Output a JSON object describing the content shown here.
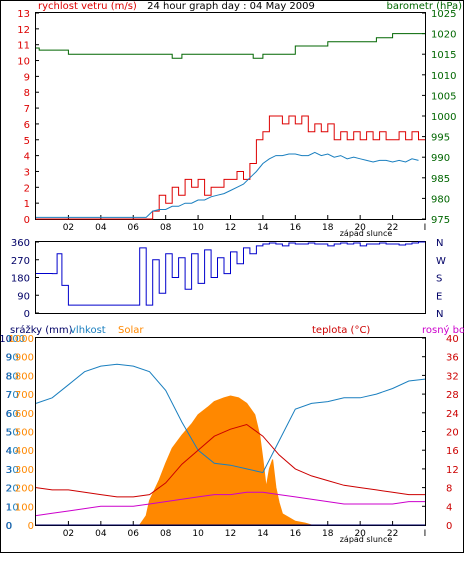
{
  "title": "24 hour graph day : 04 May 2009",
  "colors": {
    "wind": "#dd0000",
    "wind_avg": "#1a7fbf",
    "baro": "#006600",
    "dir": "#0000cc",
    "humidity": "#1a7fbf",
    "temp": "#cc0000",
    "dew": "#cc00cc",
    "solar": "#ff8800",
    "frame": "#000000",
    "grid": "#dddddd"
  },
  "chart_data": [
    {
      "type": "line",
      "title": "24 hour graph day : 04 May 2009",
      "left_axis_label": "rychlost vetru (m/s)",
      "right_axis_label": "barometr (hPa)",
      "xlabel": "západ slunce",
      "x_ticks": [
        "02",
        "04",
        "06",
        "08",
        "10",
        "12",
        "14",
        "16",
        "18",
        "20",
        "22"
      ],
      "left_ylim": [
        0,
        13
      ],
      "left_ticks": [
        0,
        1,
        2,
        3,
        4,
        5,
        6,
        7,
        8,
        9,
        10,
        11,
        12,
        13
      ],
      "right_ylim": [
        975,
        1025
      ],
      "right_ticks": [
        975,
        980,
        985,
        990,
        995,
        1000,
        1005,
        1010,
        1015,
        1020,
        1025
      ],
      "series": [
        {
          "axis": "left",
          "x": [
            0,
            0.4,
            0.8,
            1.2,
            1.6,
            2.0,
            2.4,
            2.8,
            3.2,
            3.6,
            4.0,
            4.4,
            4.8,
            5.2,
            5.6,
            6.0,
            6.4,
            6.8,
            7.2,
            7.6,
            8.0,
            8.4,
            8.8,
            9.2,
            9.6,
            10.0,
            10.4,
            10.8,
            11.2,
            11.6,
            12.0,
            12.4,
            12.8,
            13.2,
            13.6,
            14.0,
            14.4,
            14.8,
            15.2,
            15.6,
            16.0,
            16.4,
            16.8,
            17.2,
            17.6,
            18.0,
            18.4,
            18.8,
            19.2,
            19.6,
            20.0,
            20.4,
            20.8,
            21.2,
            21.6,
            22.0,
            22.4,
            22.8,
            23.2,
            23.6
          ],
          "y": [
            0,
            0,
            0,
            0,
            0,
            0,
            0,
            0,
            0,
            0,
            0,
            0,
            0,
            0,
            0,
            0,
            0,
            0,
            0.5,
            1.5,
            1.0,
            2.0,
            1.5,
            2.5,
            2.0,
            2.5,
            1.5,
            2.0,
            2.0,
            2.5,
            2.5,
            3.0,
            2.5,
            3.5,
            5.0,
            5.5,
            6.5,
            6.5,
            6.0,
            6.5,
            6.0,
            6.5,
            5.5,
            6.0,
            5.5,
            6.0,
            5.0,
            5.5,
            5.0,
            5.5,
            5.0,
            5.5,
            5.0,
            5.5,
            5.0,
            5.0,
            5.5,
            5.0,
            5.5,
            5.0
          ]
        },
        {
          "axis": "left",
          "x": [
            0,
            0.4,
            0.8,
            1.2,
            1.6,
            2.0,
            2.4,
            2.8,
            3.2,
            3.6,
            4.0,
            4.4,
            4.8,
            5.2,
            5.6,
            6.0,
            6.4,
            6.8,
            7.2,
            7.6,
            8.0,
            8.4,
            8.8,
            9.2,
            9.6,
            10.0,
            10.4,
            10.8,
            11.2,
            11.6,
            12.0,
            12.4,
            12.8,
            13.2,
            13.6,
            14.0,
            14.4,
            14.8,
            15.2,
            15.6,
            16.0,
            16.4,
            16.8,
            17.2,
            17.6,
            18.0,
            18.4,
            18.8,
            19.2,
            19.6,
            20.0,
            20.4,
            20.8,
            21.2,
            21.6,
            22.0,
            22.4,
            22.8,
            23.2,
            23.6
          ],
          "y": [
            0.1,
            0.1,
            0.1,
            0.1,
            0.1,
            0.1,
            0.1,
            0.1,
            0.1,
            0.1,
            0.1,
            0.1,
            0.1,
            0.1,
            0.1,
            0.1,
            0.1,
            0.1,
            0.5,
            0.6,
            0.6,
            0.8,
            0.8,
            1.0,
            1.0,
            1.2,
            1.2,
            1.4,
            1.5,
            1.6,
            1.8,
            2.0,
            2.2,
            2.6,
            3.0,
            3.5,
            3.8,
            4.0,
            4.0,
            4.1,
            4.1,
            4.0,
            4.0,
            4.2,
            4.0,
            4.1,
            3.9,
            4.0,
            3.8,
            3.9,
            3.8,
            3.7,
            3.6,
            3.7,
            3.7,
            3.6,
            3.7,
            3.6,
            3.8,
            3.7
          ]
        },
        {
          "axis": "right",
          "x": [
            0,
            0.2,
            2.0,
            4.0,
            7.0,
            8.4,
            9.0,
            12.0,
            13.4,
            14.0,
            16.0,
            18.0,
            20.0,
            21.0,
            22.0,
            24.0
          ],
          "y": [
            1016.5,
            1016,
            1015,
            1015,
            1015,
            1014,
            1015,
            1015,
            1014,
            1015,
            1017,
            1018,
            1018,
            1019,
            1020,
            1020
          ]
        }
      ]
    },
    {
      "type": "line",
      "left_ylim": [
        0,
        360
      ],
      "left_ticks": [
        0,
        90,
        180,
        270,
        360
      ],
      "right_labels": [
        "N",
        "W",
        "S",
        "E",
        "N"
      ],
      "series": [
        {
          "x": [
            0,
            1.0,
            1.3,
            1.6,
            2.0,
            3.0,
            4.0,
            5.0,
            6.0,
            6.4,
            6.8,
            7.2,
            7.6,
            8.0,
            8.4,
            8.8,
            9.2,
            9.6,
            10.0,
            10.4,
            10.8,
            11.2,
            11.6,
            12.0,
            12.4,
            12.8,
            13.2,
            13.6,
            14.0,
            14.4,
            14.8,
            15.2,
            15.6,
            16.0,
            16.4,
            16.8,
            17.2,
            17.6,
            18.0,
            18.4,
            18.8,
            19.2,
            19.6,
            20.0,
            20.4,
            20.8,
            21.2,
            21.6,
            22.0,
            22.4,
            22.8,
            23.2,
            23.6
          ],
          "y": [
            200,
            200,
            300,
            140,
            40,
            40,
            40,
            40,
            40,
            330,
            40,
            270,
            100,
            300,
            180,
            280,
            120,
            300,
            150,
            320,
            180,
            280,
            200,
            310,
            250,
            330,
            300,
            340,
            350,
            355,
            350,
            340,
            355,
            350,
            350,
            355,
            350,
            350,
            340,
            350,
            355,
            350,
            355,
            340,
            350,
            350,
            355,
            350,
            350,
            345,
            350,
            355,
            360
          ]
        }
      ]
    },
    {
      "type": "line",
      "legend": [
        "srážky (mm)",
        "vlhkost",
        "Solar",
        "teplota (°C)",
        "rosný bod"
      ],
      "xlabel": "západ slunce",
      "x_ticks": [
        "02",
        "04",
        "06",
        "08",
        "10",
        "12",
        "14",
        "16",
        "18",
        "20",
        "22"
      ],
      "axis_rain": {
        "ticks": [
          0,
          1,
          2,
          3,
          4,
          5,
          6,
          7,
          8,
          9,
          10
        ]
      },
      "axis_humidity": {
        "ylim": [
          0,
          100
        ],
        "ticks": [
          0,
          10,
          20,
          30,
          40,
          50,
          60,
          70,
          80,
          90,
          100
        ]
      },
      "axis_solar": {
        "ylim": [
          0,
          1000
        ],
        "ticks": [
          0,
          100,
          200,
          300,
          400,
          500,
          600,
          700,
          800,
          900,
          1000
        ]
      },
      "axis_temp": {
        "ylim": [
          0,
          40
        ],
        "ticks": [
          0,
          4,
          8,
          12,
          16,
          20,
          24,
          28,
          32,
          36,
          40
        ]
      },
      "series": [
        {
          "name": "vlhkost",
          "x": [
            0,
            1,
            2,
            3,
            4,
            5,
            6,
            7,
            8,
            9,
            10,
            11,
            12,
            13,
            14,
            15,
            16,
            17,
            18,
            19,
            20,
            21,
            22,
            23,
            24
          ],
          "y": [
            65,
            68,
            75,
            82,
            85,
            86,
            85,
            82,
            72,
            55,
            40,
            33,
            32,
            30,
            28,
            45,
            62,
            65,
            66,
            68,
            68,
            70,
            73,
            77,
            78
          ]
        },
        {
          "name": "teplota (°C)",
          "x": [
            0,
            1,
            2,
            3,
            4,
            5,
            6,
            7,
            8,
            9,
            10,
            11,
            12,
            13,
            14,
            15,
            16,
            17,
            18,
            19,
            20,
            21,
            22,
            23,
            24
          ],
          "y": [
            8,
            7.5,
            7.5,
            7,
            6.5,
            6,
            6,
            6.5,
            9,
            13,
            16,
            19,
            20.5,
            21.5,
            19,
            15,
            12,
            10.5,
            9.5,
            8.5,
            8,
            7.5,
            7,
            6.5,
            6.5
          ]
        },
        {
          "name": "rosný bod",
          "x": [
            0,
            1,
            2,
            3,
            4,
            5,
            6,
            7,
            8,
            9,
            10,
            11,
            12,
            13,
            14,
            15,
            16,
            17,
            18,
            19,
            20,
            21,
            22,
            23,
            24
          ],
          "y": [
            2,
            2.5,
            3,
            3.5,
            4,
            4,
            4,
            4.5,
            5,
            5.5,
            6,
            6.5,
            6.5,
            7,
            7,
            6.5,
            6,
            5.5,
            5,
            4.5,
            4.5,
            4.5,
            4.5,
            5,
            5
          ]
        },
        {
          "name": "Solar",
          "x": [
            0,
            6.4,
            6.8,
            7.0,
            7.6,
            8.0,
            8.4,
            9.0,
            9.6,
            10.0,
            10.6,
            11.0,
            11.6,
            12.0,
            12.5,
            13.0,
            13.5,
            13.8,
            14.0,
            14.2,
            14.4,
            14.6,
            14.8,
            15.0,
            15.2,
            15.6,
            16.0,
            16.6,
            17.0,
            24
          ],
          "y": [
            0,
            0,
            50,
            130,
            240,
            330,
            410,
            480,
            540,
            590,
            630,
            660,
            680,
            690,
            680,
            650,
            590,
            480,
            350,
            200,
            300,
            350,
            200,
            120,
            60,
            40,
            20,
            10,
            0,
            0
          ]
        },
        {
          "name": "srážky (mm)",
          "x": [
            0,
            24
          ],
          "y": [
            0,
            0
          ]
        }
      ]
    }
  ]
}
